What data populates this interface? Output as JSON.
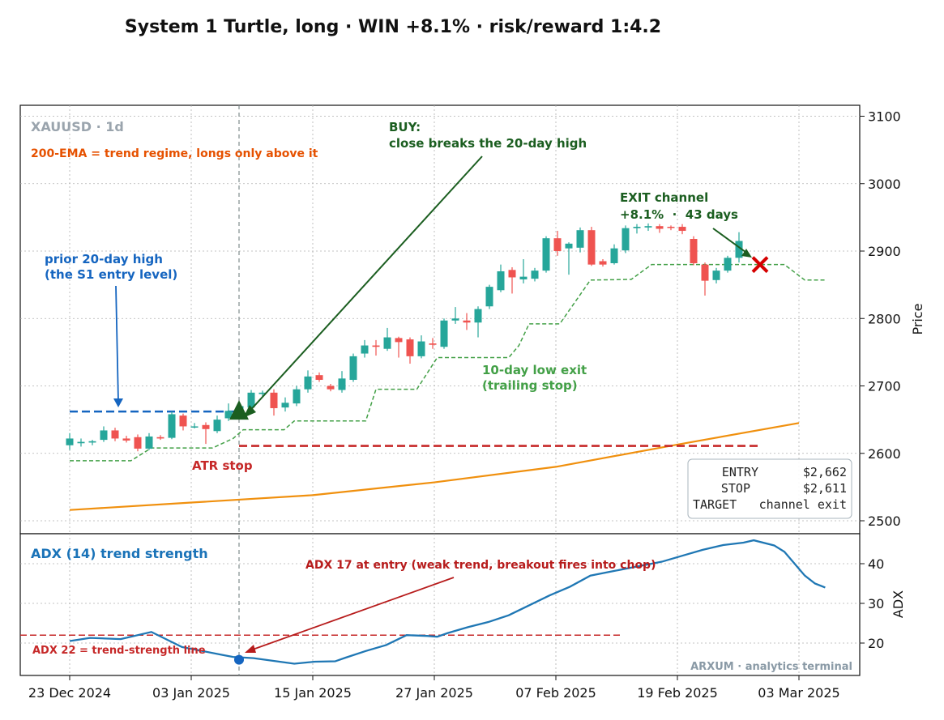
{
  "title": "System 1 Turtle, long · WIN +8.1% · risk/reward 1:4.2",
  "colors": {
    "up": "#26a69a",
    "down": "#ef5350",
    "ema": "#f0900e",
    "channel": "#43a047",
    "entry_level": "#1565c0",
    "stop": "#c62828",
    "adx": "#1f77b4",
    "buy_arrow": "#1b5e20",
    "grid": "#b0b0b0"
  },
  "annotations": {
    "symbol": "XAUUSD · 1d",
    "ema_note": "200-EMA = trend regime, longs only above it",
    "buy_line1": "BUY:",
    "buy_line2": "close breaks the 20-day high",
    "prior_high_line1": "prior 20-day high",
    "prior_high_line2": "(the S1 entry level)",
    "exit_line1": "EXIT channel",
    "exit_line2": "+8.1%  ·  43 days",
    "channel_line1": "10-day low exit",
    "channel_line2": "(trailing stop)",
    "atr_stop": "ATR stop",
    "adx_title": "ADX (14) trend strength",
    "adx_entry": "ADX 17 at entry (weak trend, breakout fires into chop)",
    "adx_line": "ADX 22 = trend-strength line",
    "watermark": "ARXUM · analytics terminal"
  },
  "info_box": {
    "entry_label": "ENTRY",
    "entry_value": "$2,662",
    "stop_label": "STOP",
    "stop_value": "$2,611",
    "target_label": "TARGET",
    "target_value": "channel exit"
  },
  "chart_data": [
    {
      "type": "candlestick",
      "title": "System 1 Turtle, long · WIN +8.1% · risk/reward 1:4.2",
      "ylabel": "Price",
      "ylim": [
        2480,
        3115
      ],
      "yticks": [
        2500,
        2600,
        2700,
        2800,
        2900,
        3000,
        3100
      ],
      "x_start": "2024-12-23",
      "x_end": "2025-03-06",
      "xticks": [
        "23 Dec 2024",
        "03 Jan 2025",
        "15 Jan 2025",
        "27 Jan 2025",
        "07 Feb 2025",
        "19 Feb 2025",
        "03 Mar 2025"
      ],
      "grid": true,
      "candles": [
        {
          "date": "2024-12-23",
          "o": 2612,
          "h": 2630,
          "l": 2605,
          "c": 2622
        },
        {
          "date": "2024-12-24",
          "o": 2615,
          "h": 2622,
          "l": 2610,
          "c": 2617
        },
        {
          "date": "2024-12-25",
          "o": 2616,
          "h": 2620,
          "l": 2612,
          "c": 2618
        },
        {
          "date": "2024-12-26",
          "o": 2620,
          "h": 2640,
          "l": 2617,
          "c": 2634
        },
        {
          "date": "2024-12-27",
          "o": 2634,
          "h": 2638,
          "l": 2618,
          "c": 2622
        },
        {
          "date": "2024-12-30",
          "o": 2622,
          "h": 2626,
          "l": 2616,
          "c": 2619
        },
        {
          "date": "2024-12-31",
          "o": 2624,
          "h": 2628,
          "l": 2603,
          "c": 2607
        },
        {
          "date": "2025-01-01",
          "o": 2607,
          "h": 2630,
          "l": 2605,
          "c": 2625
        },
        {
          "date": "2025-01-02",
          "o": 2624,
          "h": 2627,
          "l": 2620,
          "c": 2622
        },
        {
          "date": "2025-01-03",
          "o": 2623,
          "h": 2662,
          "l": 2621,
          "c": 2658
        },
        {
          "date": "2025-01-06",
          "o": 2656,
          "h": 2659,
          "l": 2634,
          "c": 2640
        },
        {
          "date": "2025-01-07",
          "o": 2640,
          "h": 2645,
          "l": 2637,
          "c": 2640
        },
        {
          "date": "2025-01-08",
          "o": 2642,
          "h": 2646,
          "l": 2614,
          "c": 2636
        },
        {
          "date": "2025-01-09",
          "o": 2633,
          "h": 2656,
          "l": 2630,
          "c": 2650
        },
        {
          "date": "2025-01-10",
          "o": 2652,
          "h": 2674,
          "l": 2648,
          "c": 2663
        },
        {
          "date": "2025-01-13",
          "o": 2662,
          "h": 2675,
          "l": 2659,
          "c": 2670
        },
        {
          "date": "2025-01-14",
          "o": 2668,
          "h": 2694,
          "l": 2665,
          "c": 2690
        },
        {
          "date": "2025-01-15",
          "o": 2688,
          "h": 2693,
          "l": 2685,
          "c": 2690
        },
        {
          "date": "2025-01-16",
          "o": 2690,
          "h": 2695,
          "l": 2656,
          "c": 2667
        },
        {
          "date": "2025-01-17",
          "o": 2668,
          "h": 2683,
          "l": 2662,
          "c": 2675
        },
        {
          "date": "2025-01-20",
          "o": 2674,
          "h": 2700,
          "l": 2670,
          "c": 2695
        },
        {
          "date": "2025-01-21",
          "o": 2695,
          "h": 2723,
          "l": 2690,
          "c": 2714
        },
        {
          "date": "2025-01-22",
          "o": 2716,
          "h": 2720,
          "l": 2706,
          "c": 2709
        },
        {
          "date": "2025-01-23",
          "o": 2700,
          "h": 2703,
          "l": 2692,
          "c": 2695
        },
        {
          "date": "2025-01-24",
          "o": 2694,
          "h": 2722,
          "l": 2690,
          "c": 2711
        },
        {
          "date": "2025-01-27",
          "o": 2709,
          "h": 2748,
          "l": 2706,
          "c": 2744
        },
        {
          "date": "2025-01-28",
          "o": 2748,
          "h": 2768,
          "l": 2742,
          "c": 2760
        },
        {
          "date": "2025-01-29",
          "o": 2760,
          "h": 2768,
          "l": 2745,
          "c": 2758
        },
        {
          "date": "2025-01-30",
          "o": 2755,
          "h": 2786,
          "l": 2752,
          "c": 2772
        },
        {
          "date": "2025-01-31",
          "o": 2771,
          "h": 2773,
          "l": 2742,
          "c": 2765
        },
        {
          "date": "2025-02-03",
          "o": 2769,
          "h": 2772,
          "l": 2733,
          "c": 2744
        },
        {
          "date": "2025-02-04",
          "o": 2744,
          "h": 2775,
          "l": 2741,
          "c": 2766
        },
        {
          "date": "2025-02-05",
          "o": 2763,
          "h": 2771,
          "l": 2755,
          "c": 2761
        },
        {
          "date": "2025-02-06",
          "o": 2758,
          "h": 2800,
          "l": 2755,
          "c": 2797
        },
        {
          "date": "2025-02-07",
          "o": 2797,
          "h": 2817,
          "l": 2792,
          "c": 2800
        },
        {
          "date": "2025-02-10",
          "o": 2797,
          "h": 2808,
          "l": 2783,
          "c": 2794
        },
        {
          "date": "2025-02-11",
          "o": 2794,
          "h": 2818,
          "l": 2772,
          "c": 2814
        },
        {
          "date": "2025-02-12",
          "o": 2818,
          "h": 2850,
          "l": 2814,
          "c": 2847
        },
        {
          "date": "2025-02-13",
          "o": 2842,
          "h": 2880,
          "l": 2839,
          "c": 2870
        },
        {
          "date": "2025-02-14",
          "o": 2872,
          "h": 2876,
          "l": 2837,
          "c": 2861
        },
        {
          "date": "2025-02-17",
          "o": 2858,
          "h": 2888,
          "l": 2852,
          "c": 2862
        },
        {
          "date": "2025-02-18",
          "o": 2859,
          "h": 2875,
          "l": 2855,
          "c": 2871
        },
        {
          "date": "2025-02-19",
          "o": 2871,
          "h": 2922,
          "l": 2868,
          "c": 2919
        },
        {
          "date": "2025-02-20",
          "o": 2919,
          "h": 2930,
          "l": 2893,
          "c": 2900
        },
        {
          "date": "2025-02-21",
          "o": 2904,
          "h": 2913,
          "l": 2865,
          "c": 2911
        },
        {
          "date": "2025-02-24",
          "o": 2905,
          "h": 2935,
          "l": 2898,
          "c": 2931
        },
        {
          "date": "2025-02-25",
          "o": 2931,
          "h": 2936,
          "l": 2878,
          "c": 2880
        },
        {
          "date": "2025-02-26",
          "o": 2885,
          "h": 2888,
          "l": 2877,
          "c": 2880
        },
        {
          "date": "2025-02-27",
          "o": 2882,
          "h": 2910,
          "l": 2880,
          "c": 2904
        },
        {
          "date": "2025-02-28",
          "o": 2901,
          "h": 2938,
          "l": 2897,
          "c": 2934
        },
        {
          "date": "2025-03-01",
          "o": 2934,
          "h": 2940,
          "l": 2926,
          "c": 2936
        },
        {
          "date": "2025-03-02",
          "o": 2935,
          "h": 2941,
          "l": 2930,
          "c": 2937
        },
        {
          "date": "2025-03-03",
          "o": 2937,
          "h": 2940,
          "l": 2927,
          "c": 2933
        },
        {
          "date": "2025-03-04",
          "o": 2936,
          "h": 2938,
          "l": 2931,
          "c": 2935
        },
        {
          "date": "2025-03-05",
          "o": 2936,
          "h": 2940,
          "l": 2925,
          "c": 2930
        },
        {
          "date": "2025-03-06",
          "o": 2918,
          "h": 2922,
          "l": 2879,
          "c": 2882
        },
        {
          "date": "2025-03-07",
          "o": 2880,
          "h": 2883,
          "l": 2834,
          "c": 2856
        },
        {
          "date": "2025-03-08",
          "o": 2857,
          "h": 2875,
          "l": 2852,
          "c": 2871
        },
        {
          "date": "2025-03-09",
          "o": 2871,
          "h": 2893,
          "l": 2868,
          "c": 2890
        },
        {
          "date": "2025-03-10",
          "o": 2890,
          "h": 2928,
          "l": 2883,
          "c": 2915
        }
      ],
      "ema200": [
        [
          0,
          2516
        ],
        [
          10,
          2527
        ],
        [
          20,
          2538
        ],
        [
          30,
          2557
        ],
        [
          40,
          2580
        ],
        [
          50,
          2613
        ],
        [
          60,
          2645
        ]
      ],
      "channel_low": [
        [
          0,
          2589
        ],
        [
          6,
          2589
        ],
        [
          8,
          2608
        ],
        [
          14,
          2608
        ],
        [
          16,
          2622
        ],
        [
          17,
          2635
        ],
        [
          21,
          2635
        ],
        [
          22,
          2648
        ],
        [
          29,
          2648
        ],
        [
          30,
          2695
        ],
        [
          34,
          2695
        ],
        [
          36,
          2742
        ],
        [
          43,
          2742
        ],
        [
          44,
          2760
        ],
        [
          45,
          2792
        ],
        [
          48,
          2792
        ],
        [
          51,
          2857
        ],
        [
          55,
          2858
        ],
        [
          57,
          2880
        ],
        [
          70,
          2880
        ],
        [
          72,
          2857
        ],
        [
          74,
          2857
        ]
      ],
      "entry_level": 2662,
      "stop_level": 2611,
      "entry_date": "2025-01-10",
      "exit_price": 2880,
      "exit_date": "2025-03-07"
    },
    {
      "type": "line",
      "ylabel": "ADX",
      "ylim": [
        13,
        48
      ],
      "yticks": [
        20,
        30,
        40
      ],
      "threshold": 22,
      "entry_adx": 17,
      "series": [
        {
          "values": [
            [
              0,
              20.5
            ],
            [
              2,
              21.3
            ],
            [
              5,
              21.0
            ],
            [
              8,
              22.8
            ],
            [
              11,
              19.0
            ],
            [
              15,
              17.0
            ],
            [
              16,
              16.5
            ],
            [
              18,
              16.2
            ],
            [
              22,
              14.8
            ],
            [
              24,
              15.3
            ],
            [
              26,
              15.4
            ],
            [
              27,
              16.3
            ],
            [
              29,
              18.0
            ],
            [
              31,
              19.5
            ],
            [
              33,
              22.0
            ],
            [
              35,
              21.8
            ],
            [
              36,
              21.6
            ],
            [
              37,
              22.5
            ],
            [
              39,
              24.0
            ],
            [
              41,
              25.3
            ],
            [
              43,
              27.0
            ],
            [
              45,
              29.5
            ],
            [
              47,
              32.0
            ],
            [
              49,
              34.2
            ],
            [
              51,
              37.0
            ],
            [
              53,
              38.0
            ],
            [
              55,
              39.0
            ],
            [
              57,
              40.0
            ],
            [
              58,
              40.5
            ],
            [
              60,
              42.0
            ],
            [
              62,
              43.5
            ],
            [
              64,
              44.7
            ],
            [
              66,
              45.3
            ],
            [
              67,
              45.9
            ],
            [
              69,
              44.6
            ],
            [
              70,
              43.0
            ],
            [
              71,
              40.0
            ],
            [
              72,
              37.0
            ],
            [
              73,
              35.0
            ],
            [
              74,
              34.0
            ]
          ]
        }
      ]
    }
  ]
}
